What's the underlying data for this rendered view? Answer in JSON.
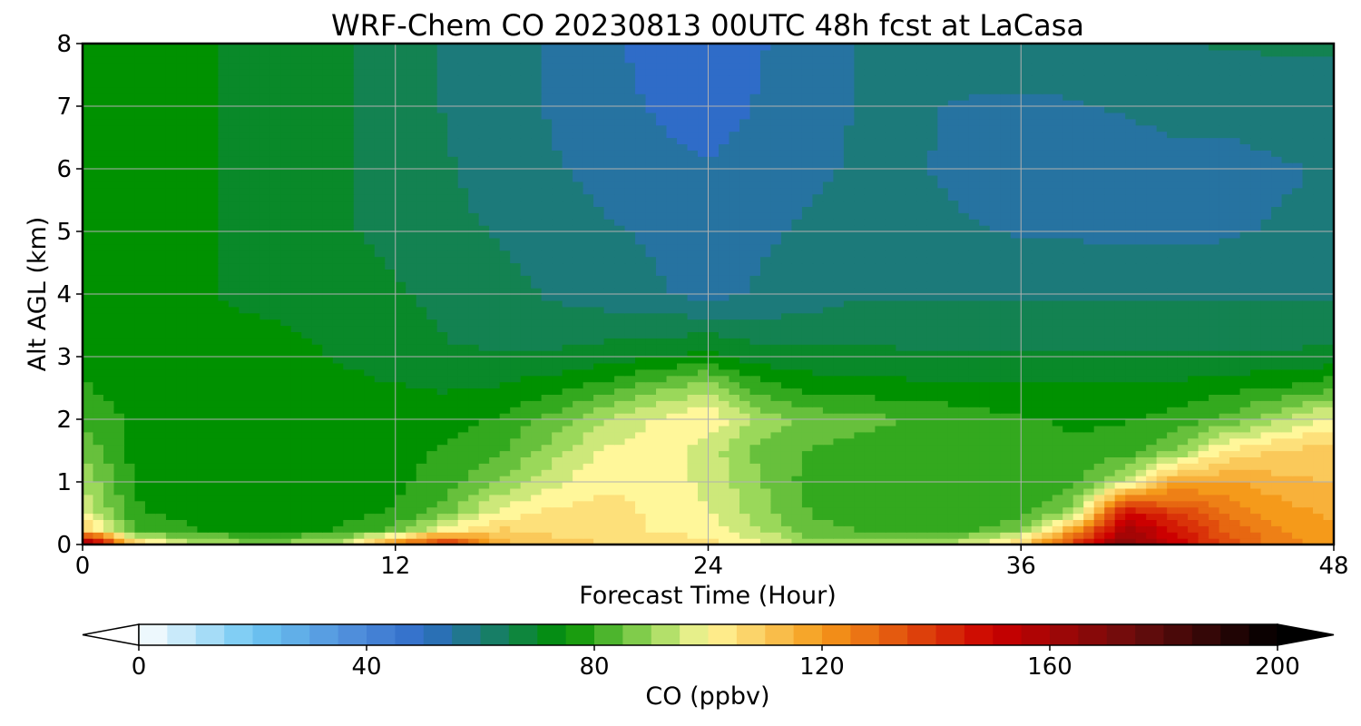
{
  "chart_data": {
    "type": "heatmap",
    "title": "WRF-Chem CO  20230813 00UTC 48h fcst at LaCasa",
    "xlabel": "Forecast Time (Hour)",
    "ylabel": "Alt AGL (km)",
    "xlim": [
      0,
      48
    ],
    "ylim": [
      0,
      8
    ],
    "xticks": [
      "0",
      "12",
      "24",
      "36",
      "48"
    ],
    "yticks": [
      "0",
      "1",
      "2",
      "3",
      "4",
      "5",
      "6",
      "7",
      "8"
    ],
    "grid": true,
    "x": [
      0,
      2,
      4,
      6,
      8,
      10,
      12,
      14,
      16,
      18,
      20,
      22,
      24,
      26,
      28,
      30,
      32,
      34,
      36,
      38,
      40,
      42,
      44,
      46,
      48
    ],
    "y": [
      0,
      0.25,
      0.5,
      1,
      1.5,
      2,
      2.5,
      3,
      4,
      5,
      6,
      7,
      8
    ],
    "z": [
      [
        175,
        110,
        95,
        90,
        90,
        95,
        125,
        145,
        115,
        110,
        108,
        106,
        104,
        100,
        90,
        90,
        92,
        96,
        108,
        140,
        170,
        150,
        135,
        125,
        120
      ],
      [
        110,
        82,
        78,
        76,
        76,
        78,
        84,
        100,
        108,
        106,
        104,
        102,
        100,
        92,
        84,
        82,
        82,
        82,
        86,
        116,
        160,
        145,
        130,
        122,
        118
      ],
      [
        98,
        78,
        76,
        76,
        76,
        76,
        78,
        86,
        100,
        104,
        104,
        102,
        98,
        90,
        82,
        80,
        80,
        80,
        80,
        90,
        150,
        138,
        126,
        120,
        116
      ],
      [
        92,
        77,
        76,
        76,
        76,
        76,
        76,
        80,
        88,
        96,
        102,
        101,
        96,
        88,
        80,
        78,
        78,
        78,
        78,
        80,
        95,
        118,
        118,
        114,
        112
      ],
      [
        86,
        76,
        76,
        76,
        76,
        76,
        76,
        78,
        82,
        90,
        98,
        100,
        95,
        86,
        82,
        80,
        80,
        79,
        78,
        78,
        80,
        88,
        104,
        108,
        110
      ],
      [
        82,
        76,
        76,
        76,
        76,
        76,
        75,
        76,
        78,
        84,
        92,
        98,
        102,
        90,
        86,
        84,
        82,
        80,
        78,
        77,
        77,
        80,
        84,
        92,
        100
      ],
      [
        78,
        75,
        75,
        75,
        75,
        74,
        73,
        72,
        73,
        76,
        80,
        86,
        92,
        80,
        76,
        75,
        74,
        74,
        73,
        73,
        73,
        74,
        76,
        78,
        82
      ],
      [
        76,
        74,
        74,
        74,
        74,
        72,
        70,
        68,
        68,
        68,
        70,
        72,
        74,
        70,
        69,
        69,
        68,
        68,
        68,
        68,
        68,
        68,
        68,
        68,
        69
      ],
      [
        74,
        73,
        73,
        72,
        71,
        70,
        68,
        66,
        64,
        62,
        60,
        58,
        56,
        58,
        60,
        62,
        62,
        62,
        62,
        62,
        62,
        62,
        62,
        62,
        62
      ],
      [
        74,
        73,
        73,
        72,
        70,
        68,
        66,
        64,
        62,
        60,
        58,
        57,
        55,
        57,
        58,
        59,
        59,
        58,
        57,
        57,
        56,
        56,
        57,
        58,
        58
      ],
      [
        74,
        73,
        73,
        72,
        70,
        68,
        66,
        63,
        60,
        58,
        56,
        54,
        53,
        55,
        57,
        58,
        58,
        56,
        54,
        54,
        55,
        56,
        56,
        57,
        58
      ],
      [
        74,
        73,
        73,
        72,
        70,
        68,
        66,
        62,
        60,
        57,
        55,
        52,
        50,
        53,
        56,
        58,
        58,
        57,
        56,
        57,
        58,
        59,
        59,
        60,
        61
      ],
      [
        74,
        73,
        73,
        72,
        70,
        68,
        66,
        62,
        60,
        57,
        54,
        50,
        48,
        52,
        56,
        58,
        60,
        60,
        62,
        62,
        62,
        62,
        63,
        63,
        63
      ]
    ],
    "colorbar": {
      "label": "CO  (ppbv)",
      "min": 0,
      "max": 200,
      "step": 5,
      "ticks": [
        "0",
        "40",
        "80",
        "120",
        "160",
        "200"
      ],
      "orientation": "horizontal",
      "extend": "both",
      "color_stops": [
        {
          "value": 0,
          "color": "#ffffff"
        },
        {
          "value": 20,
          "color": "#6fc7f2"
        },
        {
          "value": 40,
          "color": "#4a86d8"
        },
        {
          "value": 50,
          "color": "#2f6cc8"
        },
        {
          "value": 60,
          "color": "#1c7a7a"
        },
        {
          "value": 75,
          "color": "#009100"
        },
        {
          "value": 90,
          "color": "#9ad85a"
        },
        {
          "value": 100,
          "color": "#fff79a"
        },
        {
          "value": 120,
          "color": "#f59a1a"
        },
        {
          "value": 150,
          "color": "#cc0000"
        },
        {
          "value": 175,
          "color": "#6a0d0d"
        },
        {
          "value": 200,
          "color": "#000000"
        }
      ]
    }
  }
}
